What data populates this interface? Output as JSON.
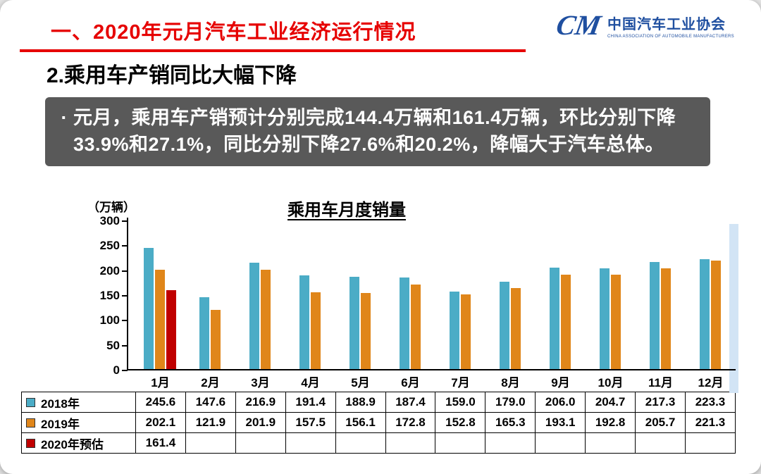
{
  "header": {
    "title": "一、2020年元月汽车工业经济运行情况"
  },
  "logo": {
    "mark": "CM",
    "cn": "中国汽车工业协会",
    "en": "CHINA ASSOCIATION OF AUTOMOBILE MANUFACTURERS"
  },
  "section": {
    "title": "2.乘用车产销同比大幅下降"
  },
  "highlight": {
    "bullet": "·",
    "text": "元月，乘用车产销预计分别完成144.4万辆和161.4万辆，环比分别下降33.9%和27.1%，同比分别下降27.6%和20.2%，降幅大于汽车总体。"
  },
  "colors": {
    "accent_red": "#e60000",
    "logo_blue": "#1f4fa0",
    "box_gray": "#595959"
  },
  "chart_data": {
    "type": "bar",
    "title": "乘用车月度销量",
    "unit_label": "（万辆）",
    "categories": [
      "1月",
      "2月",
      "3月",
      "4月",
      "5月",
      "6月",
      "7月",
      "8月",
      "9月",
      "10月",
      "11月",
      "12月"
    ],
    "series": [
      {
        "name": "2018年",
        "color": "#4BACC6",
        "values": [
          245.6,
          147.6,
          216.9,
          191.4,
          188.9,
          187.4,
          159.0,
          179.0,
          206.0,
          204.7,
          217.3,
          223.3
        ]
      },
      {
        "name": "2019年",
        "color": "#E0861A",
        "values": [
          202.1,
          121.9,
          201.9,
          157.5,
          156.1,
          172.8,
          152.8,
          165.3,
          193.1,
          192.8,
          205.7,
          221.3
        ]
      },
      {
        "name": "2020年预估",
        "color": "#C00000",
        "values": [
          161.4,
          null,
          null,
          null,
          null,
          null,
          null,
          null,
          null,
          null,
          null,
          null
        ]
      }
    ],
    "ylim": [
      0,
      300
    ],
    "yticks": [
      300,
      250,
      200,
      150,
      100,
      50,
      0
    ],
    "grid": false,
    "legend_position": "table-left"
  }
}
